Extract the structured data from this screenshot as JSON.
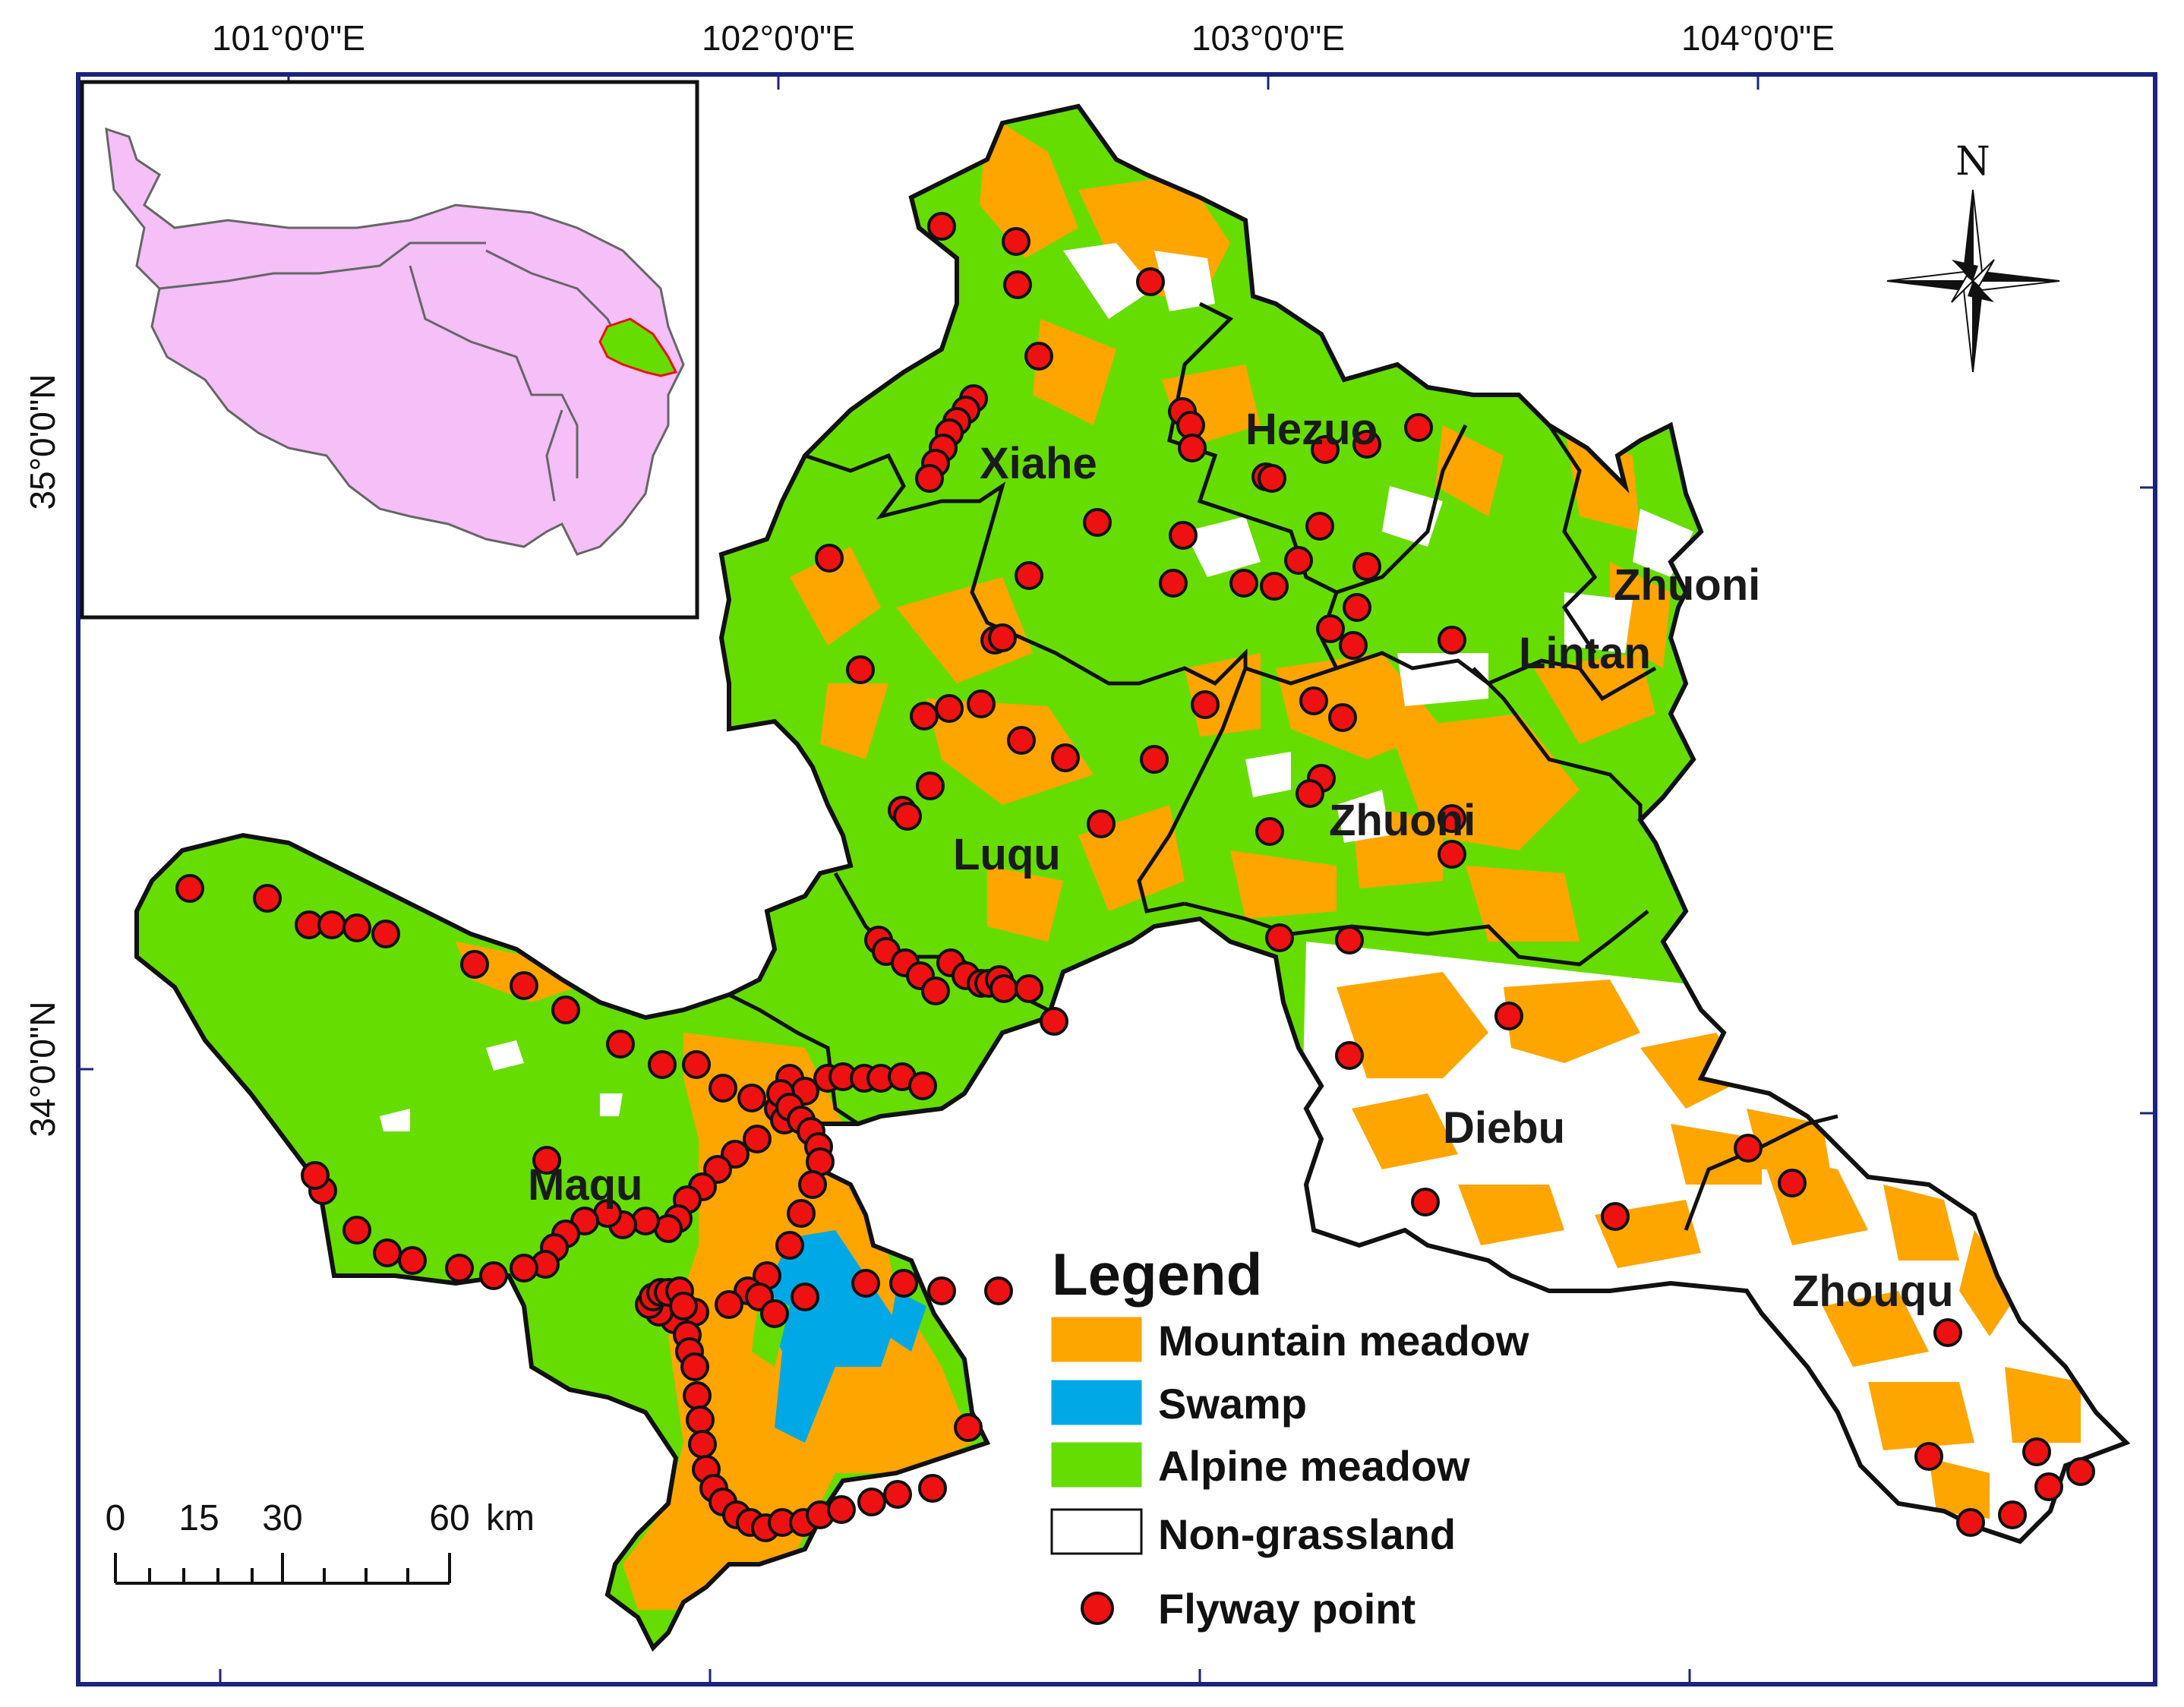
{
  "axes": {
    "longitude_labels": [
      "101°0'0\"E",
      "102°0'0\"E",
      "103°0'0\"E",
      "104°0'0\"E"
    ],
    "latitude_labels": [
      "35°0'0\"N",
      "34°0'0\"N"
    ]
  },
  "regions": {
    "xiahe": "Xiahe",
    "hezuo": "Hezuo",
    "zhuoni_north": "Zhuoni",
    "lintan": "Lintan",
    "luqu": "Luqu",
    "zhuoni_south": "Zhuoni",
    "maqu": "Maqu",
    "diebu": "Diebu",
    "zhouqu": "Zhouqu"
  },
  "legend": {
    "title": "Legend",
    "items": [
      {
        "label": "Mountain meadow",
        "color": "#FFA500"
      },
      {
        "label": "Swamp",
        "color": "#00A9E6"
      },
      {
        "label": "Alpine meadow",
        "color": "#66DD00"
      },
      {
        "label": "Non-grassland",
        "color": "#FFFFFF"
      },
      {
        "label": "Flyway point",
        "color": "#EE1111"
      }
    ]
  },
  "scale_bar": {
    "ticks": [
      "0",
      "15",
      "30",
      "60"
    ],
    "unit": "km"
  },
  "north_arrow": {
    "label": "N"
  },
  "inset": {
    "plateau_color": "#F5BFF8",
    "highlight_color": "#66DD00",
    "highlight_outline": "#EE1111"
  },
  "colors": {
    "frame": "#1A237E",
    "boundary": "#111111",
    "flyway_point": "#EE1111"
  }
}
